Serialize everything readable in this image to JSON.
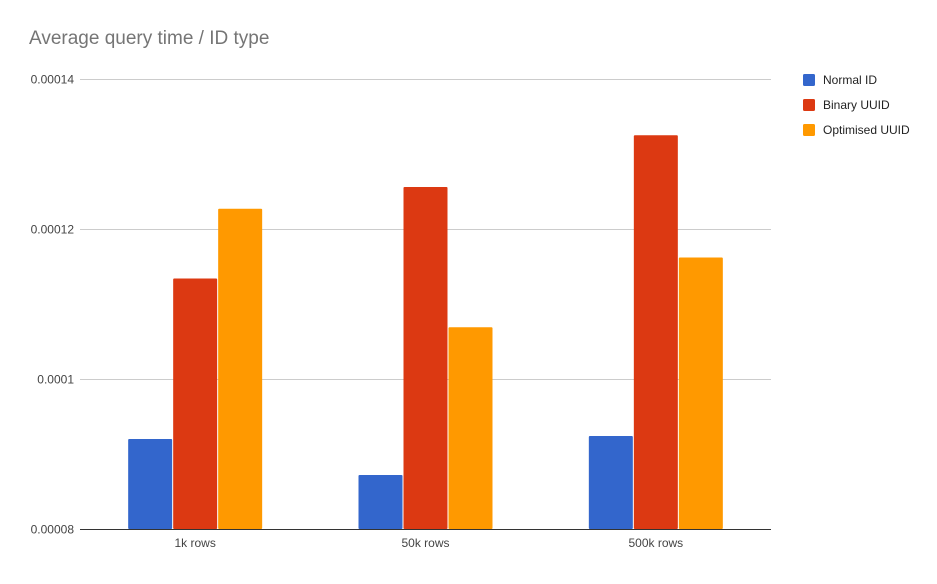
{
  "chart_data": {
    "type": "bar",
    "title": "Average query time / ID type",
    "xlabel": "",
    "ylabel": "",
    "categories": [
      "1k rows",
      "50k rows",
      "500k rows"
    ],
    "series": [
      {
        "name": "Normal ID",
        "color": "#3366cc",
        "values": [
          9.2e-05,
          8.72e-05,
          9.24e-05
        ]
      },
      {
        "name": "Binary UUID",
        "color": "#dc3912",
        "values": [
          0.0001134,
          0.0001256,
          0.0001325
        ]
      },
      {
        "name": "Optimised UUID",
        "color": "#ff9900",
        "values": [
          0.0001227,
          0.0001069,
          0.0001162
        ]
      }
    ],
    "ylim": [
      8e-05,
      0.00014
    ],
    "yticks": [
      8e-05,
      0.0001,
      0.00012,
      0.00014
    ],
    "ytick_labels": [
      "0.00008",
      "0.0001",
      "0.00012",
      "0.00014"
    ],
    "grid": true,
    "legend_position": "right"
  }
}
